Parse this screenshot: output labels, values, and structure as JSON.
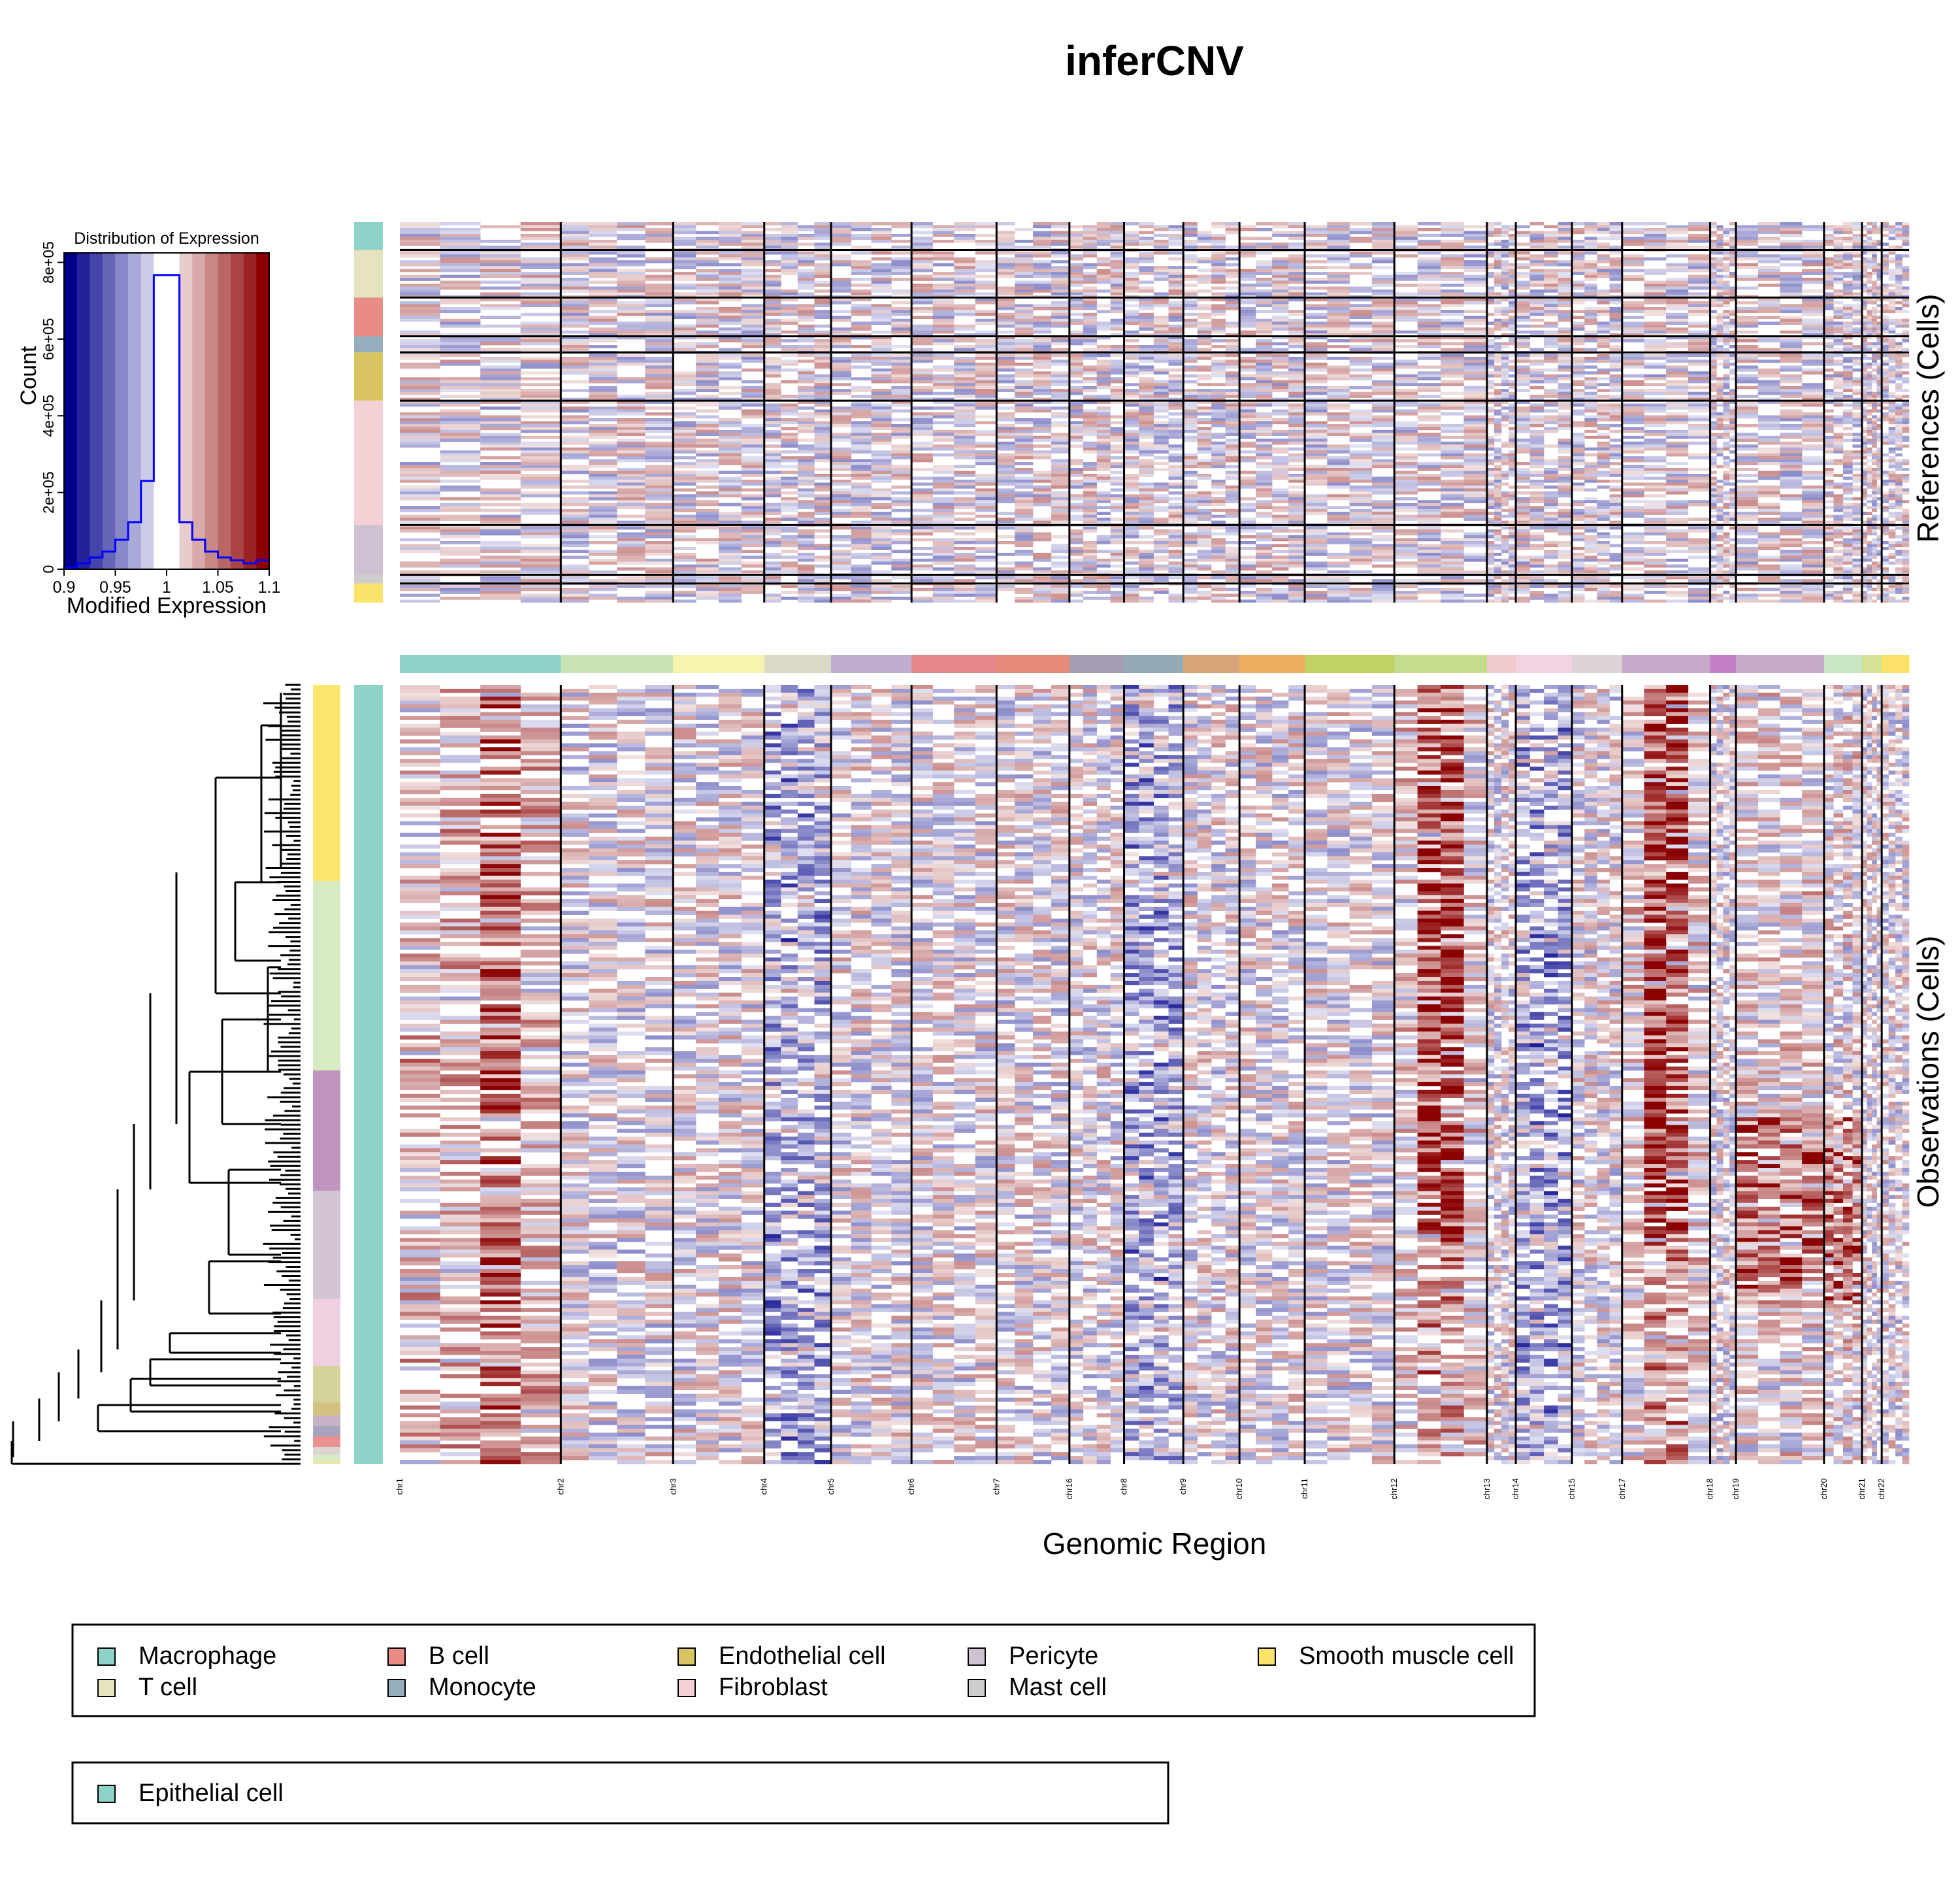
{
  "title": "inferCNV",
  "x_axis_label": "Genomic Region",
  "references_label": "References (Cells)",
  "observations_label": "Observations (Cells)",
  "histogram": {
    "title": "Distribution of Expression",
    "xlabel": "Modified Expression",
    "ylabel": "Count",
    "x_ticks": [
      "0.9",
      "0.95",
      "1",
      "1.05",
      "1.1"
    ],
    "y_ticks": [
      "0",
      "2e+05",
      "4e+05",
      "6e+05",
      "8e+05"
    ]
  },
  "colors": {
    "low": "#00008B",
    "mid": "#FFFFFF",
    "high": "#8B0000"
  },
  "chromosomes": [
    {
      "label": "chr1",
      "weight": 10.6,
      "color": "#8DD3C7"
    },
    {
      "label": "chr2",
      "weight": 7.4,
      "color": "#C9E3B4"
    },
    {
      "label": "chr3",
      "weight": 6.0,
      "color": "#F7F4B0"
    },
    {
      "label": "chr4",
      "weight": 4.4,
      "color": "#DCD8C6"
    },
    {
      "label": "chr5",
      "weight": 5.3,
      "color": "#BFADCF"
    },
    {
      "label": "chr6",
      "weight": 5.6,
      "color": "#E6888A"
    },
    {
      "label": "chr7",
      "weight": 4.8,
      "color": "#E78A7A"
    },
    {
      "label": "chr16",
      "weight": 3.6,
      "color": "#A79DB3"
    },
    {
      "label": "chr8",
      "weight": 3.9,
      "color": "#93A9B5"
    },
    {
      "label": "chr9",
      "weight": 3.7,
      "color": "#D8A57B"
    },
    {
      "label": "chr10",
      "weight": 4.3,
      "color": "#ECAE60"
    },
    {
      "label": "chr11",
      "weight": 5.9,
      "color": "#C1D265"
    },
    {
      "label": "chr12",
      "weight": 6.1,
      "color": "#C5DC8C"
    },
    {
      "label": "chr13",
      "weight": 1.9,
      "color": "#F0CACC"
    },
    {
      "label": "chr14",
      "weight": 3.7,
      "color": "#F3D2E2"
    },
    {
      "label": "chr15",
      "weight": 3.3,
      "color": "#DCD3D8"
    },
    {
      "label": "chr17",
      "weight": 5.8,
      "color": "#C9A9CA"
    },
    {
      "label": "chr18",
      "weight": 1.7,
      "color": "#C27EC5"
    },
    {
      "label": "chr19",
      "weight": 5.8,
      "color": "#C7A9C8"
    },
    {
      "label": "chr20",
      "weight": 2.5,
      "color": "#C9E5C3"
    },
    {
      "label": "chr21",
      "weight": 1.3,
      "color": "#D4E398"
    },
    {
      "label": "chr22",
      "weight": 1.8,
      "color": "#FBE167"
    }
  ],
  "reference_groups": [
    {
      "name": "Macrophage",
      "cells": 38,
      "color": "#8DD3C7"
    },
    {
      "name": "T cell",
      "cells": 65,
      "color": "#E6E4BE"
    },
    {
      "name": "B cell",
      "cells": 53,
      "color": "#E98B86"
    },
    {
      "name": "Monocyte",
      "cells": 22,
      "color": "#94AEBD"
    },
    {
      "name": "Endothelial cell",
      "cells": 66,
      "color": "#D8C562"
    },
    {
      "name": "Fibroblast",
      "cells": 170,
      "color": "#F2D0D4"
    },
    {
      "name": "Pericyte",
      "cells": 68,
      "color": "#CEC2D2"
    },
    {
      "name": "Mast cell",
      "cells": 12,
      "color": "#CFCDCB"
    },
    {
      "name": "Smooth muscle cell",
      "cells": 26,
      "color": "#FBE36A"
    }
  ],
  "observation_groups": [
    {
      "name": "Epithelial cell",
      "color": "#8DD3C7"
    }
  ],
  "observation_clusters": [
    {
      "cells": 150,
      "color": "#FDE56B"
    },
    {
      "cells": 145,
      "color": "#D6EBC2"
    },
    {
      "cells": 92,
      "color": "#C294C0"
    },
    {
      "cells": 83,
      "color": "#D3C5D4"
    },
    {
      "cells": 51,
      "color": "#F0D0E0"
    },
    {
      "cells": 28,
      "color": "#D4D49A"
    },
    {
      "cells": 10,
      "color": "#D4C080"
    },
    {
      "cells": 8,
      "color": "#C8B2C6"
    },
    {
      "cells": 8,
      "color": "#A9A3BD"
    },
    {
      "cells": 8,
      "color": "#E99190"
    },
    {
      "cells": 6,
      "color": "#DDD6D0"
    },
    {
      "cells": 4,
      "color": "#D6ECC8"
    },
    {
      "cells": 3,
      "color": "#E6E6B0"
    }
  ],
  "cnv_signals": {
    "gains": [
      {
        "chromosome": "chr12",
        "description": "strong gain, most observation cells"
      },
      {
        "chromosome": "chr17",
        "description": "strong gain, most observation cells"
      },
      {
        "chromosome": "chr1",
        "description": "gain, distal chr1q"
      },
      {
        "chromosome": "chr20",
        "description": "gain in lower clusters"
      },
      {
        "chromosome": "chr19",
        "description": "gain in lower clusters"
      }
    ],
    "losses": [
      {
        "chromosome": "chr4",
        "description": "loss, scattered"
      },
      {
        "chromosome": "chr8",
        "description": "loss, scattered"
      },
      {
        "chromosome": "chr14",
        "description": "loss, scattered"
      }
    ]
  },
  "legend1": {
    "items": [
      "Macrophage",
      "T cell",
      "B cell",
      "Monocyte",
      "Endothelial cell",
      "Fibroblast",
      "Pericyte",
      "Mast cell",
      "Smooth muscle cell"
    ],
    "colors": [
      "#8DD3C7",
      "#E6E4BE",
      "#E98B86",
      "#94AEBD",
      "#D8C562",
      "#F2D0D4",
      "#CEC2D2",
      "#CFCDCB",
      "#FBE36A"
    ]
  },
  "legend2": {
    "items": [
      "Epithelial cell"
    ],
    "colors": [
      "#8DD3C7"
    ]
  }
}
